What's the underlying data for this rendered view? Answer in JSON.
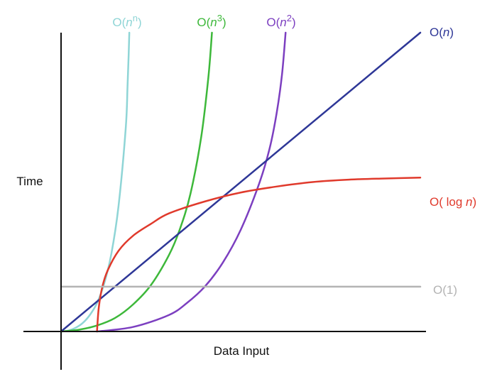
{
  "chart_data": {
    "type": "line",
    "title": "",
    "xlabel": "Data Input",
    "ylabel": "Time",
    "xlim": [
      0,
      10
    ],
    "ylim": [
      0,
      10
    ],
    "axis_color": "#111111",
    "series": [
      {
        "id": "n-n",
        "name": "O(n^n)",
        "label_prefix": "O(",
        "label_var": "n",
        "label_exp": "n",
        "label_suffix": "",
        "color": "#8fd5d6",
        "x": [
          0,
          0.2,
          0.4,
          0.6,
          0.8,
          1.0,
          1.2,
          1.4,
          1.6,
          1.8,
          1.85,
          1.88,
          1.9
        ],
        "y": [
          0,
          0.03,
          0.12,
          0.28,
          0.55,
          0.95,
          1.6,
          2.6,
          4.2,
          6.8,
          8.2,
          9.2,
          10
        ]
      },
      {
        "id": "n-3",
        "name": "O(n^3)",
        "label_prefix": "O(",
        "label_var": "n",
        "label_exp": "3",
        "label_suffix": "",
        "color": "#3db83a",
        "x": [
          0,
          0.5,
          1.0,
          1.5,
          2.0,
          2.5,
          3.0,
          3.3,
          3.6,
          3.9,
          4.1,
          4.2
        ],
        "y": [
          0,
          0.06,
          0.2,
          0.45,
          0.9,
          1.55,
          2.55,
          3.4,
          4.6,
          6.5,
          8.5,
          10
        ]
      },
      {
        "id": "n-2",
        "name": "O(n^2)",
        "label_prefix": "O(",
        "label_var": "n",
        "label_exp": "2",
        "label_suffix": "",
        "color": "#7c3fc0",
        "x": [
          1.0,
          2.0,
          3.0,
          3.5,
          4.0,
          4.5,
          5.0,
          5.5,
          5.8,
          6.0,
          6.15,
          6.25
        ],
        "y": [
          0,
          0.15,
          0.55,
          0.95,
          1.5,
          2.3,
          3.4,
          4.9,
          6.1,
          7.3,
          8.6,
          10
        ]
      },
      {
        "id": "n",
        "name": "O(n)",
        "label_prefix": "O(",
        "label_var": "n",
        "label_exp": "",
        "label_suffix": ")",
        "color": "#2e3797",
        "x": [
          0,
          10
        ],
        "y": [
          0,
          10
        ]
      },
      {
        "id": "log-n",
        "name": "O( log n)",
        "label_prefix": "O( log ",
        "label_var": "n",
        "label_exp": "",
        "label_suffix": ")",
        "color": "#e03a2c",
        "x": [
          1.0,
          1.05,
          1.15,
          1.3,
          1.6,
          2.0,
          2.5,
          3.0,
          4.0,
          5.0,
          6.0,
          7.0,
          8.0,
          9.0,
          10.0
        ],
        "y": [
          0,
          0.8,
          1.5,
          2.05,
          2.7,
          3.2,
          3.6,
          3.95,
          4.35,
          4.65,
          4.85,
          5.0,
          5.08,
          5.12,
          5.15
        ]
      },
      {
        "id": "const",
        "name": "O(1)",
        "label_prefix": "O(1)",
        "label_var": "",
        "label_exp": "",
        "label_suffix": "",
        "color": "#b3b3b3",
        "x": [
          0,
          10
        ],
        "y": [
          1.5,
          1.5
        ]
      }
    ]
  }
}
